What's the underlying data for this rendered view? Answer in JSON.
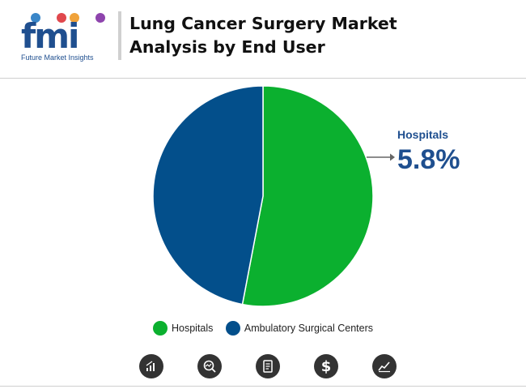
{
  "brand": {
    "logo_letters": "fmi",
    "tagline": "Future Market Insights",
    "dot_colors": [
      "#3a86c8",
      "#e0484d",
      "#f0a23a",
      "#8e44ad"
    ]
  },
  "title": "Lung Cancer Surgery Market Analysis by End User",
  "callout": {
    "label": "Hospitals",
    "value": "5.8%"
  },
  "chart_data": {
    "type": "pie",
    "title": "Lung Cancer Surgery Market Analysis by End User",
    "slices": [
      {
        "label": "Hospitals",
        "value": 53,
        "color": "#0bb02f"
      },
      {
        "label": "Ambulatory Surgical Centers",
        "value": 47,
        "color": "#034f8b"
      }
    ],
    "legend_position": "bottom",
    "start_angle_deg": 0,
    "direction": "clockwise"
  },
  "footer_icons": [
    "bar-chart-icon",
    "search-chart-icon",
    "report-icon",
    "dollar-icon",
    "trend-chart-icon"
  ],
  "colors": {
    "accent": "#1f4f8f",
    "icon_bg": "#333333"
  }
}
